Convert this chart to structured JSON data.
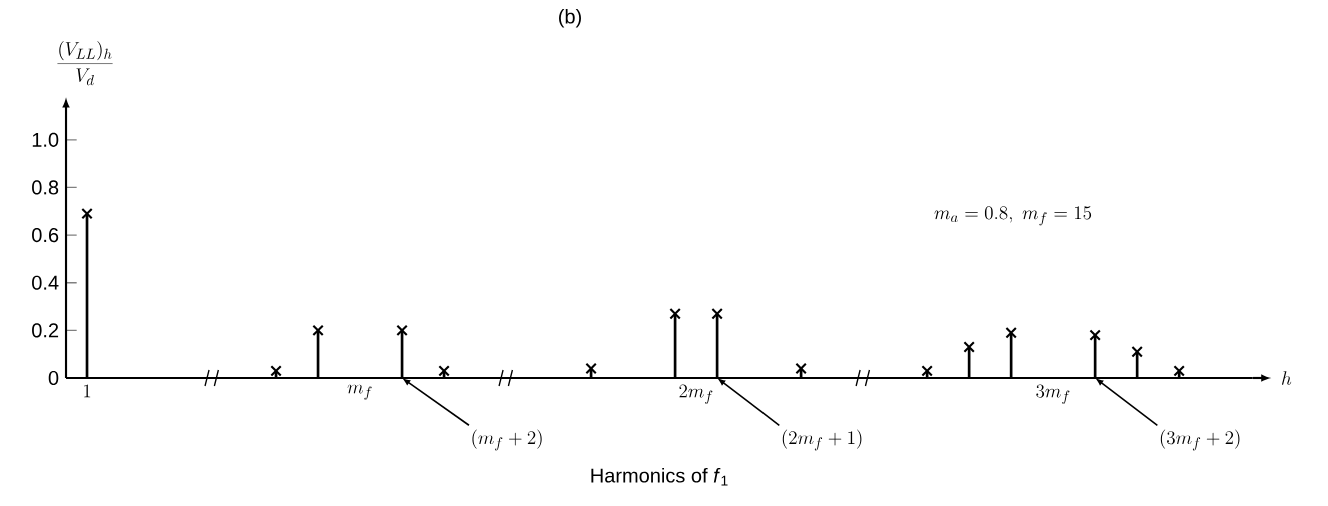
{
  "chart_data": {
    "type": "lollipop",
    "title": "(b)",
    "xlabel": "Harmonics of *f*$_{1}$",
    "ylabel": "\\frac{(V_{LL})_h}{V_d}",
    "categories": [
      "1",
      null,
      null,
      null,
      null,
      null,
      null,
      null,
      null,
      null,
      null,
      null,
      null,
      "m_f",
      null,
      null,
      null,
      null,
      null,
      null,
      null,
      null,
      null,
      null,
      null,
      null,
      null,
      null,
      null,
      "2m_f",
      null,
      null,
      null,
      null,
      null,
      null,
      null,
      null,
      null,
      null,
      null,
      null,
      null,
      null,
      null,
      null,
      "3m_f",
      null,
      null,
      null,
      null,
      null,
      null,
      null,
      null,
      null,
      null
    ],
    "values": [
      0.69,
      null,
      null,
      null,
      null,
      null,
      null,
      null,
      null,
      0.03,
      null,
      0.2,
      null,
      null,
      null,
      0.2,
      null,
      0.03,
      null,
      null,
      null,
      null,
      null,
      null,
      0.04,
      null,
      null,
      null,
      0.27,
      null,
      0.27,
      null,
      null,
      null,
      0.04,
      null,
      null,
      null,
      null,
      null,
      0.03,
      null,
      0.13,
      null,
      0.19,
      null,
      null,
      null,
      0.18,
      null,
      0.11,
      null,
      0.03,
      null,
      null,
      null,
      null
    ],
    "color": "#000000",
    "marker": "cross",
    "ylim": [
      0,
      1.1
    ],
    "yticks": [
      0,
      {
        "value": 0.2,
        "label": "0.2"
      },
      {
        "value": 0.4,
        "label": "0.4"
      },
      {
        "value": 0.6,
        "label": "0.6"
      },
      {
        "value": 0.8,
        "label": "0.8"
      },
      {
        "value": 1.0,
        "label": "1.0"
      }
    ],
    "annotations": [
      "m_a = 0.8,\\ m_f = 15",
      "(m_f + 2)",
      "(2m_f + 1)",
      "(3m_f + 2)",
      "h"
    ]
  }
}
